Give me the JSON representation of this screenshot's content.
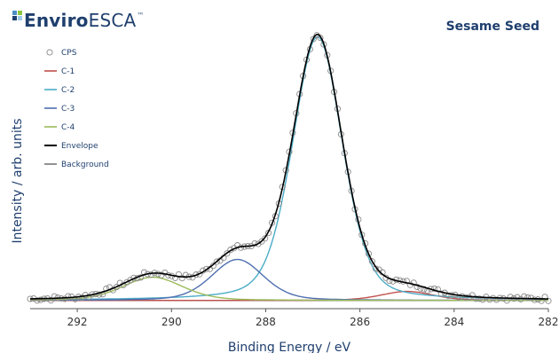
{
  "brand": {
    "name_bold": "Enviro",
    "name_light": "ESCA",
    "tm": "™",
    "colors": [
      "#4c8fc7",
      "#8cc63f",
      "#1f3f6e",
      "#9ecbe8"
    ]
  },
  "sample_title": "Sesame Seed",
  "chart_data": {
    "type": "line",
    "title": "Sesame Seed",
    "xlabel": "Binding Energy / eV",
    "ylabel": "Intensity / arb. units",
    "xlim": [
      293,
      282
    ],
    "ylim": [
      0,
      1.0
    ],
    "x_reversed": true,
    "xticks": [
      292,
      290,
      288,
      286,
      284,
      282
    ],
    "xtick_labels": [
      "292",
      "290",
      "288",
      "286",
      "284",
      "282"
    ],
    "grid": false,
    "legend_position": "top-left",
    "baseline": 0.03,
    "components": [
      {
        "name": "C-1",
        "color": "#c0504d",
        "center": 285.0,
        "height": 0.033,
        "fwhm": 1.3
      },
      {
        "name": "C-2",
        "color": "#4bacc6",
        "center": 286.9,
        "height": 0.965,
        "fwhm": 1.25
      },
      {
        "name": "C-3",
        "color": "#4f6fb0",
        "center": 288.6,
        "height": 0.15,
        "fwhm": 1.3
      },
      {
        "name": "C-4",
        "color": "#9bbb59",
        "center": 290.4,
        "height": 0.085,
        "fwhm": 1.5
      }
    ],
    "series": [
      {
        "name": "CPS",
        "color": "#888888",
        "marker": "circle"
      },
      {
        "name": "C-1",
        "color": "#c0504d"
      },
      {
        "name": "C-2",
        "color": "#4bacc6"
      },
      {
        "name": "C-3",
        "color": "#4f6fb0"
      },
      {
        "name": "C-4",
        "color": "#9bbb59"
      },
      {
        "name": "Envelope",
        "color": "#000000"
      },
      {
        "name": "Background",
        "color": "#777777"
      }
    ]
  }
}
